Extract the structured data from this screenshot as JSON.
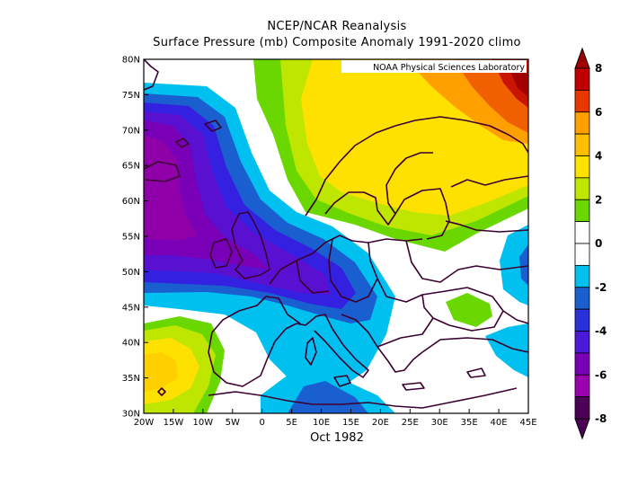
{
  "title": "NCEP/NCAR Reanalysis",
  "subtitle": "Surface Pressure (mb) Composite Anomaly 1991-2020 climo",
  "credit": "NOAA Physical Sciences Laboratory",
  "time_label": "Oct 1982",
  "colors": {
    "neg8": "#4b0055",
    "neg6": "#7a00b8",
    "neg4": "#4a1ad8",
    "neg2": "#1a5fd0",
    "neg0": "#00c0f0",
    "zero": "#ffffff",
    "pos2": "#6ad800",
    "pos4": "#bfe600",
    "pos4b": "#ffe100",
    "pos6": "#ffa000",
    "pos8": "#e83800",
    "pos9": "#c00000",
    "coast": "#3c0030"
  },
  "chart_data": {
    "type": "heatmap",
    "region": {
      "lon_range": [
        -20,
        45
      ],
      "lat_range": [
        30,
        80
      ]
    },
    "x_ticks": [
      "20W",
      "15W",
      "10W",
      "5W",
      "0",
      "5E",
      "10E",
      "15E",
      "20E",
      "25E",
      "30E",
      "35E",
      "40E",
      "45E"
    ],
    "y_ticks": [
      "30N",
      "35N",
      "40N",
      "45N",
      "50N",
      "55N",
      "60N",
      "65N",
      "70N",
      "75N",
      "80N"
    ],
    "colorbar": {
      "labels": [
        "8",
        "6",
        "4",
        "2",
        "0",
        "-2",
        "-4",
        "-6",
        "-8"
      ],
      "levels": [
        -8,
        -7,
        -6,
        -5,
        -4,
        -3,
        -2,
        -1,
        1,
        2,
        3,
        4,
        5,
        6,
        7,
        8
      ]
    },
    "features": [
      {
        "name": "negative anomaly center",
        "lon": -17,
        "lat": 58,
        "value": -6
      },
      {
        "name": "positive anomaly center",
        "lon": 43,
        "lat": 78,
        "value": 8
      },
      {
        "name": "positive anomaly Iberia west",
        "lon": -16,
        "lat": 36,
        "value": 4
      },
      {
        "name": "positive anomaly Scandinavia",
        "lon": 20,
        "lat": 67,
        "value": 4
      },
      {
        "name": "negative anomaly Italy",
        "lon": 12,
        "lat": 33,
        "value": -2
      }
    ]
  }
}
